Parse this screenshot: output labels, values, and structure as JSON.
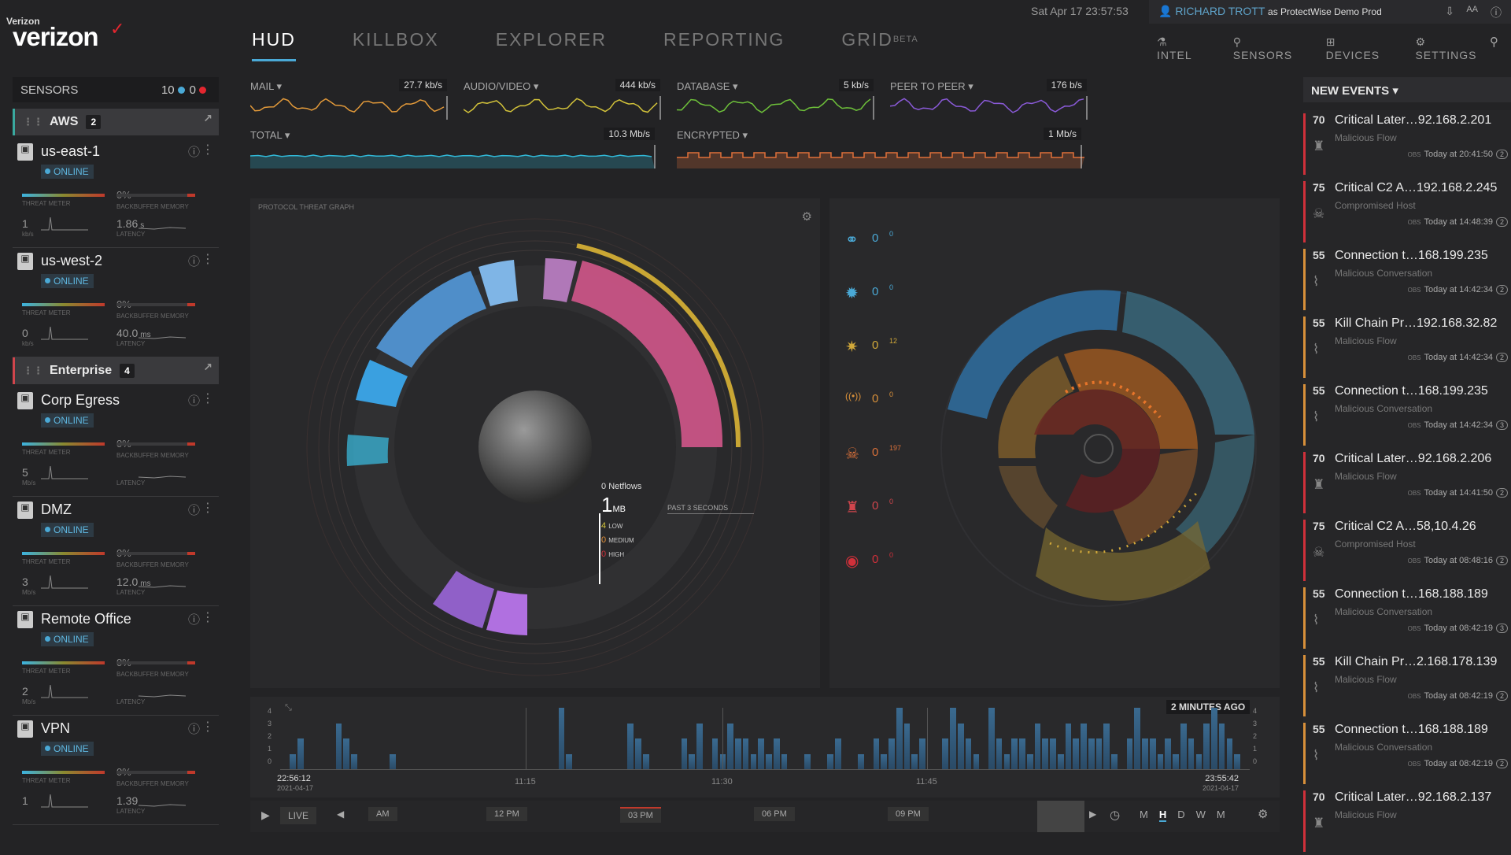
{
  "brand": {
    "small": "Verizon",
    "name": "verizon",
    "check": "✓"
  },
  "nav": [
    {
      "label": "HUD",
      "sup": ""
    },
    {
      "label": "KILLBOX",
      "sup": ""
    },
    {
      "label": "EXPLORER",
      "sup": ""
    },
    {
      "label": "REPORTING",
      "sup": ""
    },
    {
      "label": "GRID",
      "sup": "BETA"
    }
  ],
  "header": {
    "clock": "Sat Apr 17 23:57:53",
    "user": "RICHARD TROTT",
    "as": "as ProtectWise Demo Prod",
    "subnav": [
      "INTEL",
      "SENSORS",
      "DEVICES",
      "SETTINGS"
    ]
  },
  "sensors": {
    "title": "SENSORS",
    "count_online": "10",
    "count_offline": "0",
    "groups": [
      {
        "name": "AWS",
        "count": "2",
        "accent": "#3aa99f",
        "items": [
          {
            "name": "us-east-1",
            "status": "ONLINE",
            "pct": "0%",
            "tput": "1",
            "tput_unit": "kb/s",
            "lat": "1.86",
            "lat_unit": "s"
          },
          {
            "name": "us-west-2",
            "status": "ONLINE",
            "pct": "0%",
            "tput": "0",
            "tput_unit": "kb/s",
            "lat": "40.0",
            "lat_unit": "ms"
          }
        ]
      },
      {
        "name": "Enterprise",
        "count": "4",
        "accent": "#d0454c",
        "items": [
          {
            "name": "Corp Egress",
            "status": "ONLINE",
            "pct": "0%",
            "tput": "5",
            "tput_unit": "Mb/s",
            "lat": "",
            "lat_unit": ""
          },
          {
            "name": "DMZ",
            "status": "ONLINE",
            "pct": "0%",
            "tput": "3",
            "tput_unit": "Mb/s",
            "lat": "12.0",
            "lat_unit": "ms"
          },
          {
            "name": "Remote Office",
            "status": "ONLINE",
            "pct": "0%",
            "tput": "2",
            "tput_unit": "Mb/s",
            "lat": "",
            "lat_unit": ""
          },
          {
            "name": "VPN",
            "status": "ONLINE",
            "pct": "0%",
            "tput": "1",
            "tput_unit": "",
            "lat": "1.39",
            "lat_unit": ""
          }
        ]
      }
    ],
    "labels": {
      "threat": "THREAT METER",
      "bb": "BACKBUFFER MEMORY",
      "latency": "LATENCY"
    }
  },
  "traffic": [
    {
      "label": "MAIL ▾",
      "value": "27.7 kb/s",
      "color": "#e39a3a"
    },
    {
      "label": "AUDIO/VIDEO ▾",
      "value": "444 kb/s",
      "color": "#d2c23a"
    },
    {
      "label": "DATABASE ▾",
      "value": "5 kb/s",
      "color": "#6ec13a"
    },
    {
      "label": "PEER TO PEER ▾",
      "value": "176 b/s",
      "color": "#8a5ad8"
    },
    {
      "label": "TOTAL ▾",
      "value": "10.3 Mb/s",
      "color": "#31b9d8"
    },
    {
      "label": "ENCRYPTED ▾",
      "value": "1 Mb/s",
      "color": "#e0703a"
    }
  ],
  "ptg": {
    "title": "PROTOCOL THREAT GRAPH",
    "netflows": "0",
    "netflows_label": "Netflows",
    "size": "1",
    "size_unit": "MB",
    "window": "PAST 3 SECONDS",
    "low": "4",
    "low_label": "LOW",
    "medium": "0",
    "medium_label": "MEDIUM",
    "high": "0",
    "high_label": "HIGH"
  },
  "killchain": [
    {
      "icon": "binoculars-icon",
      "glyph": "⚭",
      "value": "0",
      "sub": "0",
      "color": "#4aa9d6"
    },
    {
      "icon": "bomb-icon",
      "glyph": "✹",
      "value": "0",
      "sub": "0",
      "color": "#4aa9d6"
    },
    {
      "icon": "burst-icon",
      "glyph": "✷",
      "value": "0",
      "sub": "12",
      "color": "#d2a93a"
    },
    {
      "icon": "broadcast-icon",
      "glyph": "((•))",
      "value": "0",
      "sub": "0",
      "color": "#d8903a"
    },
    {
      "icon": "skull-icon",
      "glyph": "☠",
      "value": "0",
      "sub": "197",
      "color": "#d8703a"
    },
    {
      "icon": "castle-icon",
      "glyph": "♜",
      "value": "0",
      "sub": "0",
      "color": "#d0454c"
    },
    {
      "icon": "mask-icon",
      "glyph": "◉",
      "value": "0",
      "sub": "0",
      "color": "#d0303a"
    }
  ],
  "timeline": {
    "ago": "2 MINUTES AGO",
    "yticks": [
      "4",
      "3",
      "2",
      "1",
      "0"
    ],
    "start_time": "22:56:12",
    "start_date": "2021-04-17",
    "end_time": "23:55:42",
    "end_date": "2021-04-17",
    "ticks": [
      "11:15",
      "11:30",
      "11:45"
    ],
    "bars": [
      1,
      2,
      0,
      0,
      0,
      0,
      3,
      2,
      1,
      0,
      0,
      0,
      0,
      1,
      0,
      0,
      0,
      0,
      0,
      0,
      0,
      0,
      0,
      0,
      0,
      0,
      0,
      0,
      0,
      0,
      0,
      0,
      0,
      0,
      0,
      4,
      1,
      0,
      0,
      0,
      0,
      0,
      0,
      0,
      3,
      2,
      1,
      0,
      0,
      0,
      0,
      2,
      1,
      3,
      0,
      2,
      1,
      3,
      2,
      2,
      1,
      2,
      1,
      2,
      1,
      0,
      0,
      1,
      0,
      0,
      1,
      2,
      0,
      0,
      1,
      0,
      2,
      1,
      2,
      4,
      3,
      1,
      2,
      0,
      0,
      2,
      4,
      3,
      2,
      1,
      0,
      4,
      2,
      1,
      2,
      2,
      1,
      3,
      2,
      2,
      1,
      3,
      2,
      3,
      2,
      2,
      3,
      1,
      0,
      2,
      4,
      2,
      2,
      1,
      2,
      1,
      3,
      2,
      1,
      3,
      4,
      3,
      2,
      1
    ]
  },
  "bottombar": {
    "live": "LIVE",
    "hours": [
      "AM",
      "12 PM",
      "03 PM",
      "06 PM",
      "09 PM"
    ],
    "ranges": [
      "M",
      "H",
      "D",
      "W",
      "M"
    ],
    "active_range": "H"
  },
  "events": {
    "title": "NEW EVENTS ▾",
    "items": [
      {
        "score": "70",
        "title": "Critical Later…92.168.2.201",
        "sub": "Malicious Flow",
        "time": "Today at 20:41:50",
        "n": "2",
        "color": "#d0303a",
        "icon": "castle-icon",
        "glyph": "♜"
      },
      {
        "score": "75",
        "title": "Critical C2 A…192.168.2.245",
        "sub": "Compromised Host",
        "time": "Today at 14:48:39",
        "n": "2",
        "color": "#d0303a",
        "icon": "skull-icon",
        "glyph": "☠"
      },
      {
        "score": "55",
        "title": "Connection t…168.199.235",
        "sub": "Malicious Conversation",
        "time": "Today at 14:42:34",
        "n": "2",
        "color": "#d8903a",
        "icon": "broadcast-icon",
        "glyph": "⌇"
      },
      {
        "score": "55",
        "title": "Kill Chain Pr…192.168.32.82",
        "sub": "Malicious Flow",
        "time": "Today at 14:42:34",
        "n": "2",
        "color": "#d8903a",
        "icon": "broadcast-icon",
        "glyph": "⌇"
      },
      {
        "score": "55",
        "title": "Connection t…168.199.235",
        "sub": "Malicious Conversation",
        "time": "Today at 14:42:34",
        "n": "3",
        "color": "#d8903a",
        "icon": "broadcast-icon",
        "glyph": "⌇"
      },
      {
        "score": "70",
        "title": "Critical Later…92.168.2.206",
        "sub": "Malicious Flow",
        "time": "Today at 14:41:50",
        "n": "2",
        "color": "#d0303a",
        "icon": "castle-icon",
        "glyph": "♜"
      },
      {
        "score": "75",
        "title": "Critical C2 A…58,10.4.26",
        "sub": "Compromised Host",
        "time": "Today at 08:48:16",
        "n": "2",
        "color": "#d0303a",
        "icon": "skull-icon",
        "glyph": "☠"
      },
      {
        "score": "55",
        "title": "Connection t…168.188.189",
        "sub": "Malicious Conversation",
        "time": "Today at 08:42:19",
        "n": "3",
        "color": "#d8903a",
        "icon": "broadcast-icon",
        "glyph": "⌇"
      },
      {
        "score": "55",
        "title": "Kill Chain Pr…2.168.178.139",
        "sub": "Malicious Flow",
        "time": "Today at 08:42:19",
        "n": "2",
        "color": "#d8903a",
        "icon": "broadcast-icon",
        "glyph": "⌇"
      },
      {
        "score": "55",
        "title": "Connection t…168.188.189",
        "sub": "Malicious Conversation",
        "time": "Today at 08:42:19",
        "n": "2",
        "color": "#d8903a",
        "icon": "broadcast-icon",
        "glyph": "⌇"
      },
      {
        "score": "70",
        "title": "Critical Later…92.168.2.137",
        "sub": "Malicious Flow",
        "time": "",
        "n": "",
        "color": "#d0303a",
        "icon": "castle-icon",
        "glyph": "♜"
      }
    ],
    "obs": "OBS"
  }
}
